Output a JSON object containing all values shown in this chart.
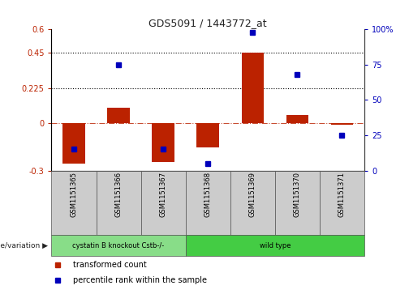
{
  "title": "GDS5091 / 1443772_at",
  "samples": [
    "GSM1151365",
    "GSM1151366",
    "GSM1151367",
    "GSM1151368",
    "GSM1151369",
    "GSM1151370",
    "GSM1151371"
  ],
  "transformed_count": [
    -0.255,
    0.1,
    -0.245,
    -0.155,
    0.45,
    0.055,
    -0.008
  ],
  "percentile_rank": [
    15,
    75,
    15,
    5,
    98,
    68,
    25
  ],
  "ylim_left": [
    -0.3,
    0.6
  ],
  "ylim_right": [
    0,
    100
  ],
  "yticks_left": [
    -0.3,
    0.0,
    0.225,
    0.45,
    0.6
  ],
  "yticks_right": [
    0,
    25,
    50,
    75,
    100
  ],
  "ytick_labels_left": [
    "-0.3",
    "0",
    "0.225",
    "0.45",
    "0.6"
  ],
  "ytick_labels_right": [
    "0",
    "25",
    "50",
    "75",
    "100%"
  ],
  "hlines": [
    0.45,
    0.225
  ],
  "zero_line": 0.0,
  "bar_color": "#bb2200",
  "dot_color": "#0000bb",
  "groups": [
    {
      "label": "cystatin B knockout Cstb-/-",
      "samples": [
        0,
        1,
        2
      ],
      "color": "#88dd88"
    },
    {
      "label": "wild type",
      "samples": [
        3,
        4,
        5,
        6
      ],
      "color": "#44cc44"
    }
  ],
  "group_label": "genotype/variation",
  "legend_items": [
    {
      "color": "#bb2200",
      "marker": "s",
      "label": "transformed count"
    },
    {
      "color": "#0000bb",
      "marker": "s",
      "label": "percentile rank within the sample"
    }
  ],
  "background_color": "#ffffff",
  "bar_width": 0.5,
  "sample_box_color": "#cccccc",
  "sample_box_edge": "#555555"
}
